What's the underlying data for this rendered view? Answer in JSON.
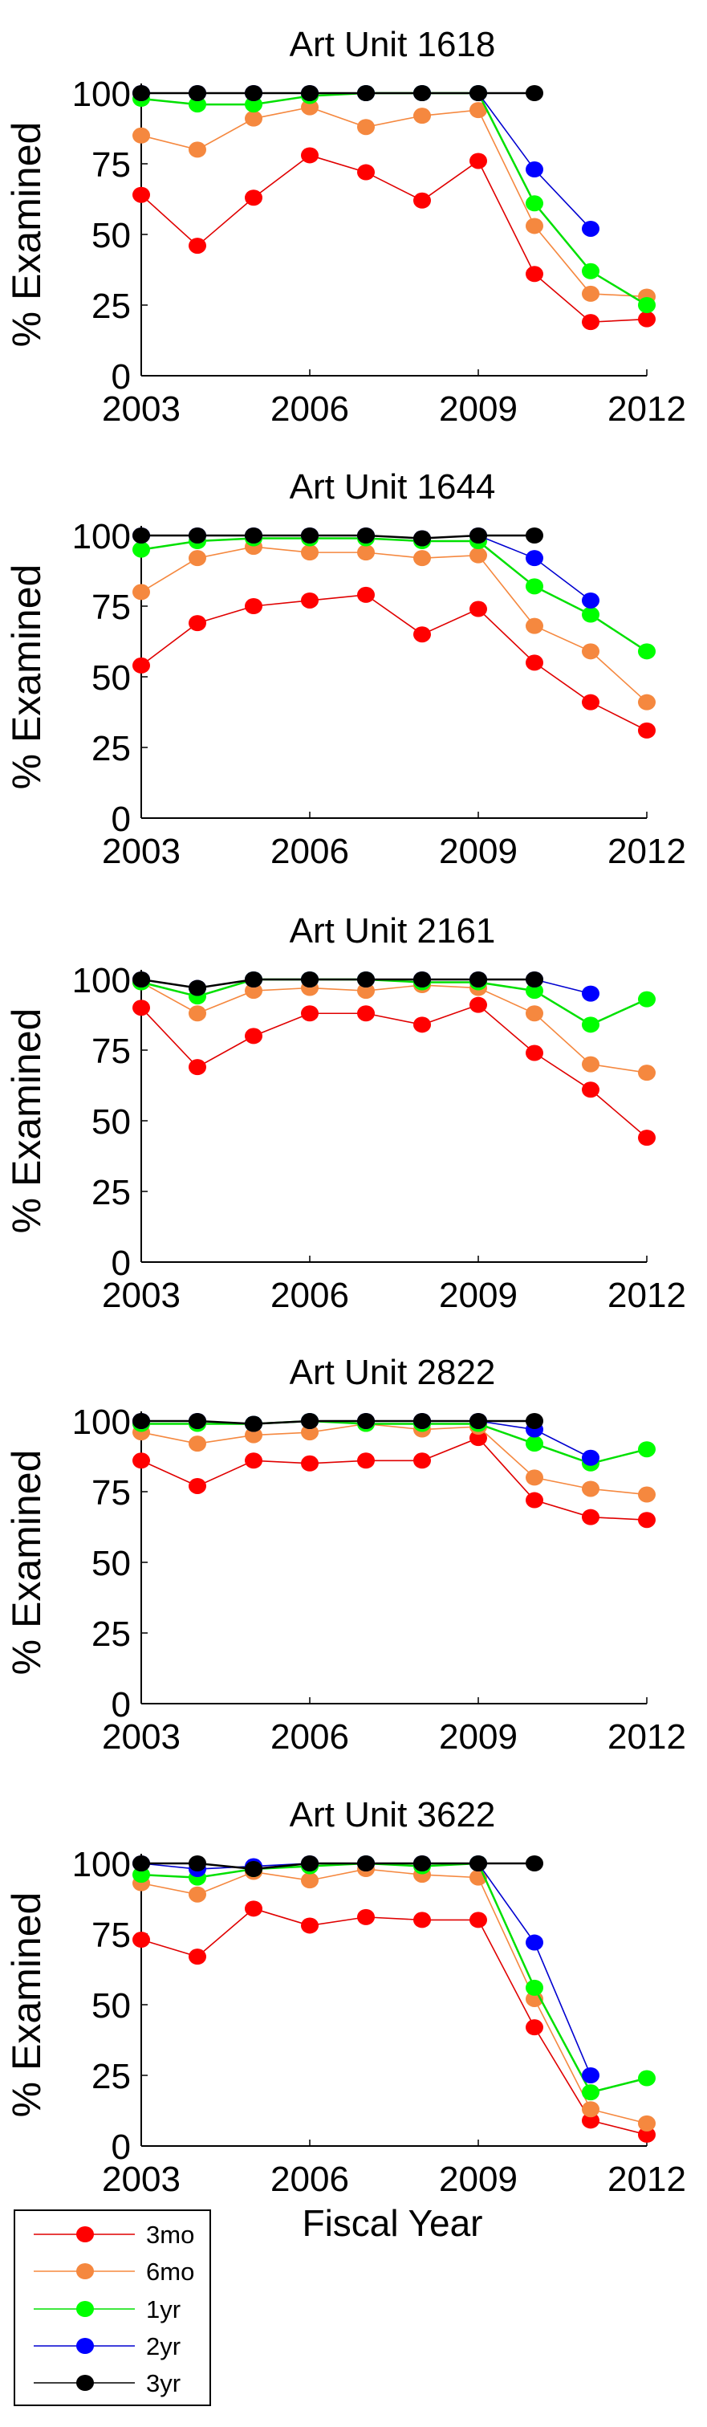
{
  "chart_data": [
    {
      "type": "line",
      "title": "Art Unit 1618",
      "ylabel": "% Examined",
      "xlabel": "",
      "x": [
        2003,
        2004,
        2005,
        2006,
        2007,
        2008,
        2009,
        2010,
        2011,
        2012
      ],
      "xticks": [
        "2003",
        "2006",
        "2009",
        "2012"
      ],
      "yticks": [
        "0",
        "25",
        "50",
        "75",
        "100"
      ],
      "xlim": [
        2003,
        2012
      ],
      "ylim": [
        0,
        100
      ],
      "series": [
        {
          "name": "3mo",
          "values": [
            64,
            46,
            63,
            78,
            72,
            62,
            76,
            36,
            19,
            20
          ]
        },
        {
          "name": "6mo",
          "values": [
            85,
            80,
            91,
            95,
            88,
            92,
            94,
            53,
            29,
            28
          ]
        },
        {
          "name": "1yr",
          "values": [
            98,
            96,
            96,
            99,
            100,
            100,
            100,
            61,
            37,
            25
          ]
        },
        {
          "name": "2yr",
          "values": [
            100,
            100,
            100,
            100,
            100,
            100,
            100,
            73,
            52,
            null
          ]
        },
        {
          "name": "3yr",
          "values": [
            100,
            100,
            100,
            100,
            100,
            100,
            100,
            100,
            null,
            null
          ]
        }
      ]
    },
    {
      "type": "line",
      "title": "Art Unit 1644",
      "ylabel": "% Examined",
      "xlabel": "",
      "x": [
        2003,
        2004,
        2005,
        2006,
        2007,
        2008,
        2009,
        2010,
        2011,
        2012
      ],
      "xticks": [
        "2003",
        "2006",
        "2009",
        "2012"
      ],
      "yticks": [
        "0",
        "25",
        "50",
        "75",
        "100"
      ],
      "xlim": [
        2003,
        2012
      ],
      "ylim": [
        0,
        100
      ],
      "series": [
        {
          "name": "3mo",
          "values": [
            54,
            69,
            75,
            77,
            79,
            65,
            74,
            55,
            41,
            31
          ]
        },
        {
          "name": "6mo",
          "values": [
            80,
            92,
            96,
            94,
            94,
            92,
            93,
            68,
            59,
            41
          ]
        },
        {
          "name": "1yr",
          "values": [
            95,
            98,
            99,
            99,
            99,
            98,
            98,
            82,
            72,
            59
          ]
        },
        {
          "name": "2yr",
          "values": [
            100,
            100,
            100,
            100,
            100,
            99,
            100,
            92,
            77,
            null
          ]
        },
        {
          "name": "3yr",
          "values": [
            100,
            100,
            100,
            100,
            100,
            99,
            100,
            100,
            null,
            null
          ]
        }
      ]
    },
    {
      "type": "line",
      "title": "Art Unit 2161",
      "ylabel": "% Examined",
      "xlabel": "",
      "x": [
        2003,
        2004,
        2005,
        2006,
        2007,
        2008,
        2009,
        2010,
        2011,
        2012
      ],
      "xticks": [
        "2003",
        "2006",
        "2009",
        "2012"
      ],
      "yticks": [
        "0",
        "25",
        "50",
        "75",
        "100"
      ],
      "xlim": [
        2003,
        2012
      ],
      "ylim": [
        0,
        100
      ],
      "series": [
        {
          "name": "3mo",
          "values": [
            90,
            69,
            80,
            88,
            88,
            84,
            91,
            74,
            61,
            44
          ]
        },
        {
          "name": "6mo",
          "values": [
            99,
            88,
            96,
            97,
            96,
            98,
            97,
            88,
            70,
            67
          ]
        },
        {
          "name": "1yr",
          "values": [
            99,
            94,
            100,
            100,
            100,
            99,
            99,
            96,
            84,
            93
          ]
        },
        {
          "name": "2yr",
          "values": [
            100,
            97,
            100,
            100,
            100,
            100,
            100,
            100,
            95,
            null
          ]
        },
        {
          "name": "3yr",
          "values": [
            100,
            97,
            100,
            100,
            100,
            100,
            100,
            100,
            null,
            null
          ]
        }
      ]
    },
    {
      "type": "line",
      "title": "Art Unit 2822",
      "ylabel": "% Examined",
      "xlabel": "",
      "x": [
        2003,
        2004,
        2005,
        2006,
        2007,
        2008,
        2009,
        2010,
        2011,
        2012
      ],
      "xticks": [
        "2003",
        "2006",
        "2009",
        "2012"
      ],
      "yticks": [
        "0",
        "25",
        "50",
        "75",
        "100"
      ],
      "xlim": [
        2003,
        2012
      ],
      "ylim": [
        0,
        100
      ],
      "series": [
        {
          "name": "3mo",
          "values": [
            86,
            77,
            86,
            85,
            86,
            86,
            94,
            72,
            66,
            65
          ]
        },
        {
          "name": "6mo",
          "values": [
            96,
            92,
            95,
            96,
            99,
            97,
            98,
            80,
            76,
            74
          ]
        },
        {
          "name": "1yr",
          "values": [
            99,
            99,
            99,
            100,
            99,
            99,
            99,
            92,
            85,
            90
          ]
        },
        {
          "name": "2yr",
          "values": [
            100,
            100,
            99,
            100,
            100,
            100,
            100,
            97,
            87,
            null
          ]
        },
        {
          "name": "3yr",
          "values": [
            100,
            100,
            99,
            100,
            100,
            100,
            100,
            100,
            null,
            null
          ]
        }
      ]
    },
    {
      "type": "line",
      "title": "Art Unit 3622",
      "ylabel": "% Examined",
      "xlabel": "Fiscal Year",
      "x": [
        2003,
        2004,
        2005,
        2006,
        2007,
        2008,
        2009,
        2010,
        2011,
        2012
      ],
      "xticks": [
        "2003",
        "2006",
        "2009",
        "2012"
      ],
      "yticks": [
        "0",
        "25",
        "50",
        "75",
        "100"
      ],
      "xlim": [
        2003,
        2012
      ],
      "ylim": [
        0,
        100
      ],
      "series": [
        {
          "name": "3mo",
          "values": [
            73,
            67,
            84,
            78,
            81,
            80,
            80,
            42,
            9,
            4
          ]
        },
        {
          "name": "6mo",
          "values": [
            93,
            89,
            97,
            94,
            98,
            96,
            95,
            52,
            13,
            8
          ]
        },
        {
          "name": "1yr",
          "values": [
            96,
            95,
            98,
            99,
            100,
            99,
            100,
            56,
            19,
            24
          ]
        },
        {
          "name": "2yr",
          "values": [
            100,
            98,
            99,
            100,
            100,
            100,
            100,
            72,
            25,
            null
          ]
        },
        {
          "name": "3yr",
          "values": [
            100,
            100,
            98,
            100,
            100,
            100,
            100,
            100,
            null,
            null
          ]
        }
      ]
    }
  ],
  "legend": {
    "placement": "bottom-left",
    "entries": [
      {
        "label": "3mo",
        "color": "#ff0000",
        "line": "#e00000"
      },
      {
        "label": "6mo",
        "color": "#f5883f",
        "line": "#f5883f"
      },
      {
        "label": "1yr",
        "color": "#00ff00",
        "line": "#00e000"
      },
      {
        "label": "2yr",
        "color": "#0000ff",
        "line": "#0000d0"
      },
      {
        "label": "3yr",
        "color": "#000000",
        "line": "#000000"
      }
    ]
  }
}
